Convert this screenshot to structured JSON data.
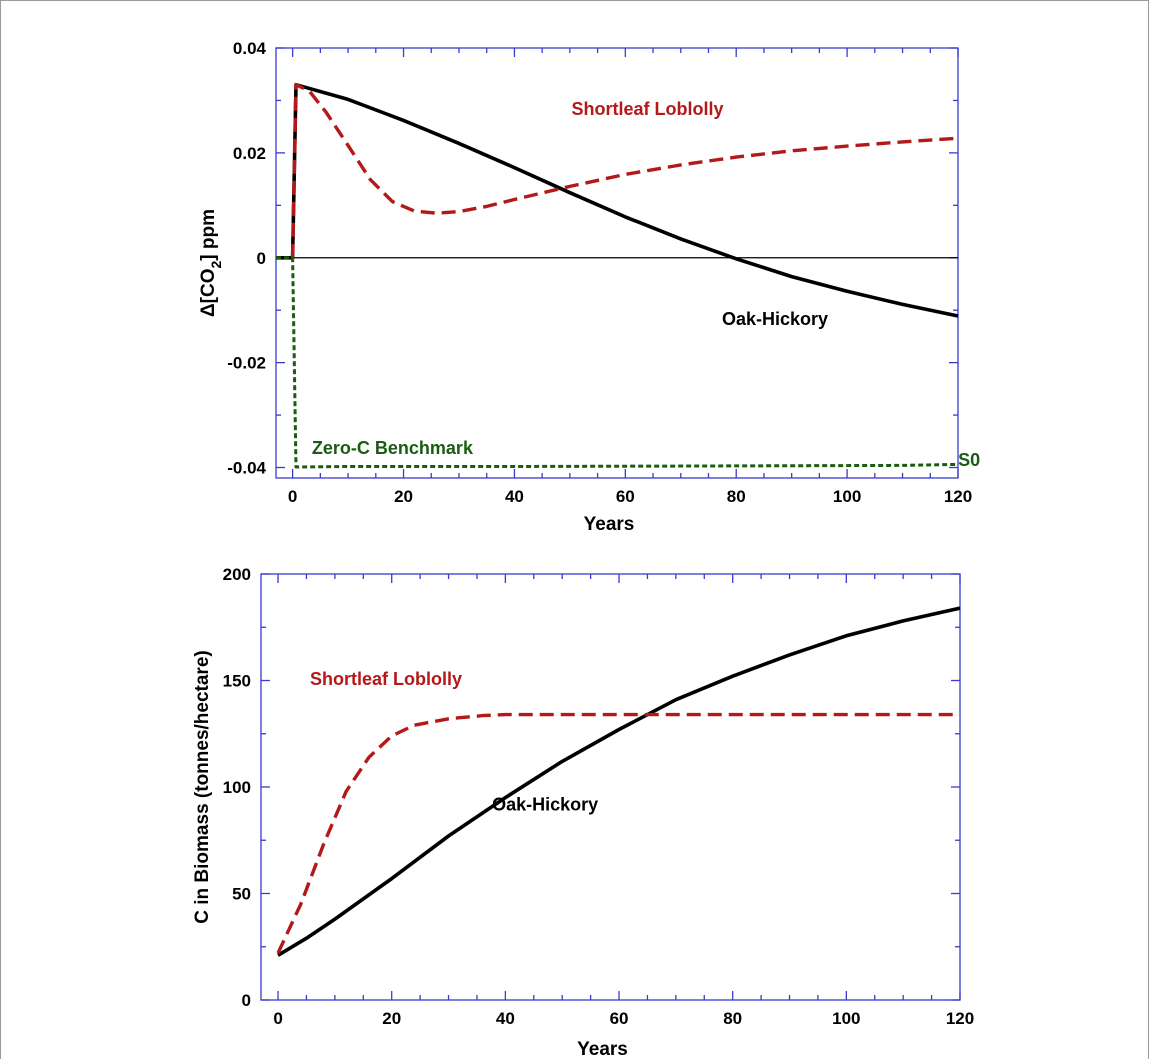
{
  "colors": {
    "axis": "#3a3ad0",
    "black": "#000000",
    "red": "#b41818",
    "green": "#1a5c12"
  },
  "chart_data": [
    {
      "type": "line",
      "xlabel": "Years",
      "ylabel_prefix": "Δ[CO",
      "ylabel_sub": "2",
      "ylabel_suffix": "] ppm",
      "xlim": [
        -3,
        120
      ],
      "ylim": [
        -0.042,
        0.04
      ],
      "xticks": [
        0,
        20,
        40,
        60,
        80,
        100,
        120
      ],
      "yticks": [
        -0.04,
        -0.02,
        0,
        0.02,
        0.04
      ],
      "ytick_labels": [
        "-0.04",
        "-0.02",
        "0",
        "0.02",
        "0.04"
      ],
      "zero_line": true,
      "series": [
        {
          "name": "Oak-Hickory",
          "style": "solid",
          "color": "#000000",
          "x": [
            -3,
            0,
            0.6,
            10,
            20,
            30,
            40,
            50,
            60,
            70,
            80,
            90,
            100,
            110,
            120
          ],
          "y": [
            0,
            0,
            0.033,
            0.0302,
            0.0262,
            0.0218,
            0.0172,
            0.0124,
            0.0078,
            0.0036,
            -0.0002,
            -0.0036,
            -0.0064,
            -0.0089,
            -0.0111
          ]
        },
        {
          "name": "Shortleaf Loblolly",
          "style": "dashed",
          "color": "#b41818",
          "x": [
            0,
            0.6,
            3,
            6,
            10,
            14,
            18,
            22,
            26,
            30,
            35,
            40,
            50,
            60,
            70,
            80,
            90,
            100,
            110,
            120
          ],
          "y": [
            0,
            0.033,
            0.0318,
            0.0278,
            0.0214,
            0.0149,
            0.0107,
            0.0089,
            0.0085,
            0.0088,
            0.0098,
            0.0111,
            0.0136,
            0.0159,
            0.0177,
            0.0192,
            0.0204,
            0.0213,
            0.0221,
            0.0228
          ]
        },
        {
          "name": "Zero-C Benchmark",
          "style": "dotted",
          "color": "#1a5c12",
          "x": [
            -3,
            0,
            0.6,
            1.2,
            10,
            40,
            80,
            110,
            120
          ],
          "y": [
            0,
            0,
            -0.0399,
            -0.0399,
            -0.0398,
            -0.0398,
            -0.0397,
            -0.0396,
            -0.0394
          ]
        }
      ],
      "annotations": [
        {
          "text": "Shortleaf Loblolly",
          "x": 64,
          "y": 0.0272,
          "color": "#b41818"
        },
        {
          "text": "Oak-Hickory",
          "x": 87,
          "y": -0.0128,
          "color": "#000000"
        },
        {
          "text": "Zero-C Benchmark",
          "x": 18,
          "y": -0.0374,
          "color": "#1a5c12"
        },
        {
          "text": "S0",
          "x": 122,
          "y": -0.0397,
          "color": "#1a5c12"
        }
      ]
    },
    {
      "type": "line",
      "xlabel": "Years",
      "ylabel": "C in Biomass (tonnes/hectare)",
      "xlim": [
        -3,
        120
      ],
      "ylim": [
        0,
        200
      ],
      "xticks": [
        0,
        20,
        40,
        60,
        80,
        100,
        120
      ],
      "yticks": [
        0,
        50,
        100,
        150,
        200
      ],
      "ytick_labels": [
        "0",
        "50",
        "100",
        "150",
        "200"
      ],
      "series": [
        {
          "name": "Oak-Hickory",
          "style": "solid",
          "color": "#000000",
          "x": [
            0,
            5,
            10,
            20,
            30,
            40,
            50,
            60,
            70,
            80,
            90,
            100,
            110,
            120
          ],
          "y": [
            21,
            29,
            38,
            57,
            77,
            95,
            112,
            127,
            141,
            152,
            162,
            171,
            178,
            184
          ]
        },
        {
          "name": "Shortleaf Loblolly",
          "style": "dashed",
          "color": "#b41818",
          "x": [
            0,
            4,
            8,
            12,
            16,
            20,
            24,
            30,
            36,
            40,
            60,
            80,
            100,
            120
          ],
          "y": [
            22,
            45,
            73,
            98,
            114,
            124,
            129,
            132,
            133.5,
            134,
            134,
            134,
            134,
            134
          ]
        }
      ],
      "annotations": [
        {
          "text": "Shortleaf Loblolly",
          "x": 19,
          "y": 148,
          "color": "#b41818"
        },
        {
          "text": "Oak-Hickory",
          "x": 47,
          "y": 89,
          "color": "#000000"
        }
      ]
    }
  ]
}
